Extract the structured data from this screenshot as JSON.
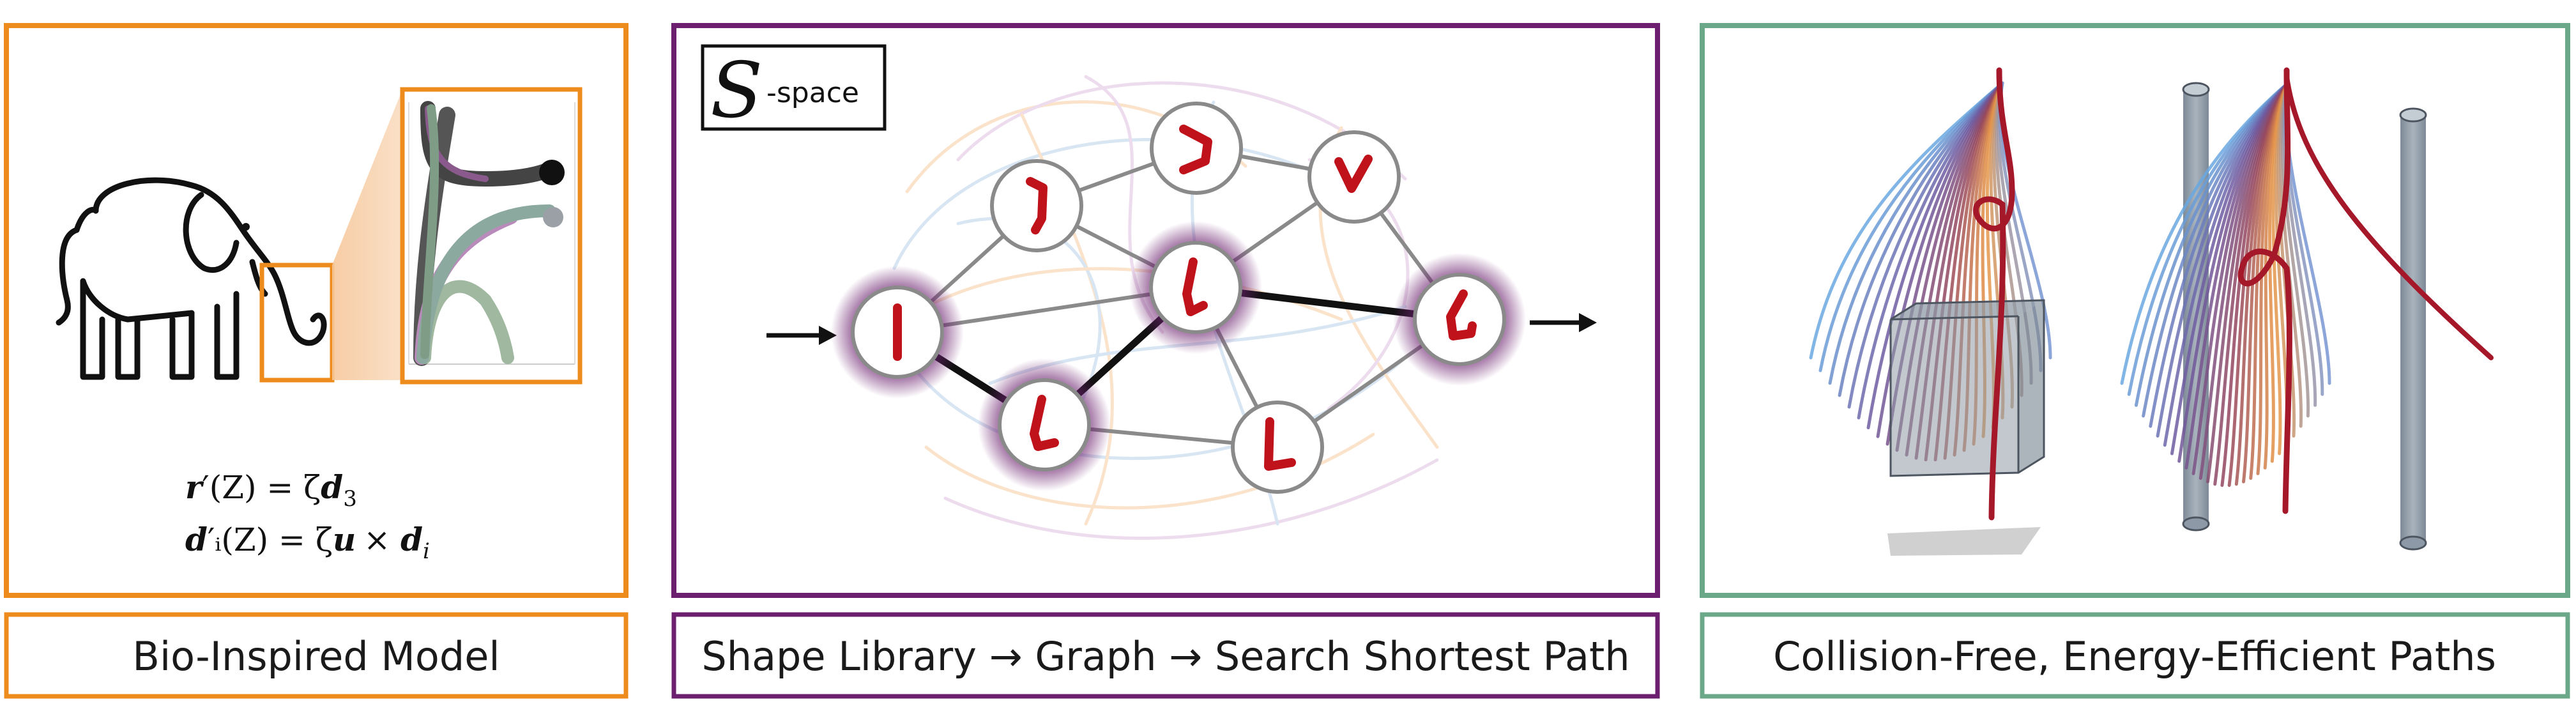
{
  "colors": {
    "orange": "#ED8B1C",
    "purple": "#6B1F6E",
    "green": "#6BA88A",
    "red": "#C0121A",
    "node_stroke": "#8A8A8A",
    "edge": "#8A8A8A",
    "pillar": "#8D99A6"
  },
  "panels": [
    {
      "id": "bio",
      "caption": "Bio-Inspired Model",
      "equations": [
        {
          "lhs_vec": "r",
          "lhs_mid": "′(Z) = ζ",
          "rhs_vec": "d",
          "rhs_tail": "3"
        },
        {
          "lhs_vec": "d",
          "lhs_mid": "′ᵢ(Z) = ζ",
          "rhs_vec": "u",
          "rhs_tail": "× ",
          "rhs_vec2": "d",
          "rhs_sub": "i"
        }
      ],
      "icons": [
        "elephant-icon",
        "zoom-trunk-plot"
      ]
    },
    {
      "id": "graph",
      "caption": "Shape Library → Graph → Search Shortest Path",
      "sspace_symbol": "S",
      "sspace_suffix": "-space",
      "nodes": [
        {
          "id": "n1",
          "glyph": "straight",
          "highlight": true
        },
        {
          "id": "n2",
          "glyph": "hook-left",
          "highlight": false
        },
        {
          "id": "n3",
          "glyph": "hook-right",
          "highlight": false
        },
        {
          "id": "n4",
          "glyph": "check",
          "highlight": false
        },
        {
          "id": "n5",
          "glyph": "bend",
          "highlight": true
        },
        {
          "id": "n6",
          "glyph": "curl",
          "highlight": true
        },
        {
          "id": "n7",
          "glyph": "bend-low",
          "highlight": true
        },
        {
          "id": "n8",
          "glyph": "ell",
          "highlight": false
        }
      ],
      "edges": [
        {
          "from": "n1",
          "to": "n2",
          "path": false
        },
        {
          "from": "n1",
          "to": "n5",
          "path": false
        },
        {
          "from": "n1",
          "to": "n7",
          "path": true
        },
        {
          "from": "n2",
          "to": "n3",
          "path": false
        },
        {
          "from": "n2",
          "to": "n5",
          "path": false
        },
        {
          "from": "n3",
          "to": "n4",
          "path": false
        },
        {
          "from": "n4",
          "to": "n5",
          "path": false
        },
        {
          "from": "n4",
          "to": "n6",
          "path": false
        },
        {
          "from": "n5",
          "to": "n6",
          "path": true
        },
        {
          "from": "n5",
          "to": "n7",
          "path": true
        },
        {
          "from": "n5",
          "to": "n8",
          "path": false
        },
        {
          "from": "n7",
          "to": "n8",
          "path": false
        },
        {
          "from": "n8",
          "to": "n6",
          "path": false
        }
      ]
    },
    {
      "id": "paths",
      "caption": "Collision-Free, Energy-Efficient Paths",
      "scenes": [
        "box-obstacle",
        "pillar-obstacles"
      ]
    }
  ]
}
